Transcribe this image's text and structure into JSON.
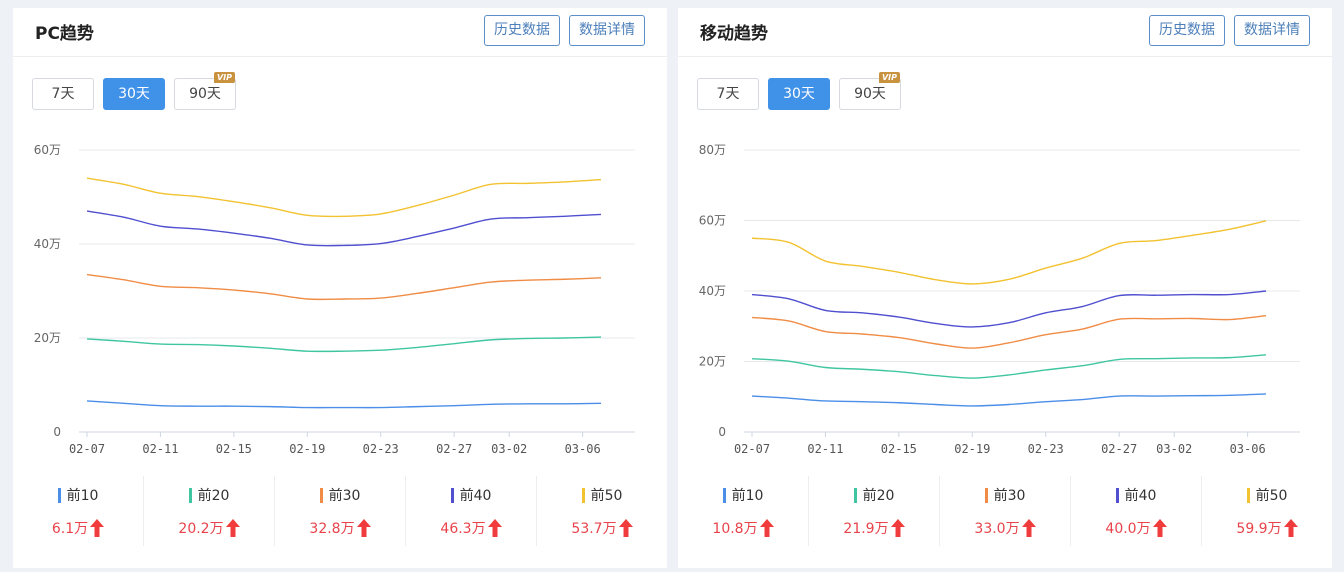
{
  "panels": [
    {
      "id": "pc",
      "title": "PC趋势",
      "buttons": {
        "history": "历史数据",
        "details": "数据详情"
      },
      "range_tabs": [
        {
          "label": "7天",
          "active": false,
          "vip": false
        },
        {
          "label": "30天",
          "active": true,
          "vip": false
        },
        {
          "label": "90天",
          "active": false,
          "vip": true
        }
      ],
      "vip_badge": "VIP",
      "legend": [
        {
          "label": "前10",
          "value": "6.1万",
          "color": "#4a8ee8",
          "trend": "up"
        },
        {
          "label": "前20",
          "value": "20.2万",
          "color": "#3fc6a0",
          "trend": "up"
        },
        {
          "label": "前30",
          "value": "32.8万",
          "color": "#f08c45",
          "trend": "up"
        },
        {
          "label": "前40",
          "value": "46.3万",
          "color": "#4f4fd0",
          "trend": "up"
        },
        {
          "label": "前50",
          "value": "53.7万",
          "color": "#f2c230",
          "trend": "up"
        }
      ]
    },
    {
      "id": "mobile",
      "title": "移动趋势",
      "buttons": {
        "history": "历史数据",
        "details": "数据详情"
      },
      "range_tabs": [
        {
          "label": "7天",
          "active": false,
          "vip": false
        },
        {
          "label": "30天",
          "active": true,
          "vip": false
        },
        {
          "label": "90天",
          "active": false,
          "vip": true
        }
      ],
      "vip_badge": "VIP",
      "legend": [
        {
          "label": "前10",
          "value": "10.8万",
          "color": "#4a8ee8",
          "trend": "up"
        },
        {
          "label": "前20",
          "value": "21.9万",
          "color": "#3fc6a0",
          "trend": "up"
        },
        {
          "label": "前30",
          "value": "33.0万",
          "color": "#f08c45",
          "trend": "up"
        },
        {
          "label": "前40",
          "value": "40.0万",
          "color": "#4f4fd0",
          "trend": "up"
        },
        {
          "label": "前50",
          "value": "59.9万",
          "color": "#f2c230",
          "trend": "up"
        }
      ]
    }
  ],
  "chart_data": [
    {
      "type": "line",
      "title": "PC趋势",
      "xlabel": "",
      "ylabel": "",
      "ylim": [
        0,
        60
      ],
      "yticks": [
        "0",
        "20万",
        "40万",
        "60万"
      ],
      "xticks": [
        "02-07",
        "02-11",
        "02-15",
        "02-19",
        "02-23",
        "02-27",
        "03-02",
        "03-06"
      ],
      "x": [
        "02-07",
        "02-09",
        "02-11",
        "02-13",
        "02-15",
        "02-17",
        "02-19",
        "02-21",
        "02-23",
        "02-25",
        "02-27",
        "03-01",
        "03-03",
        "03-05",
        "03-07"
      ],
      "grid": true,
      "legend_position": "bottom",
      "series": [
        {
          "name": "前10",
          "color": "#4a8ee8",
          "values": [
            6.6,
            6.1,
            5.6,
            5.5,
            5.5,
            5.4,
            5.2,
            5.2,
            5.2,
            5.4,
            5.6,
            5.9,
            6.0,
            6.0,
            6.1
          ]
        },
        {
          "name": "前20",
          "color": "#3fc6a0",
          "values": [
            19.8,
            19.3,
            18.7,
            18.6,
            18.3,
            17.8,
            17.2,
            17.2,
            17.4,
            18.0,
            18.8,
            19.6,
            19.9,
            20.0,
            20.2
          ]
        },
        {
          "name": "前30",
          "color": "#f08c45",
          "values": [
            33.5,
            32.4,
            31.0,
            30.7,
            30.2,
            29.4,
            28.3,
            28.3,
            28.5,
            29.5,
            30.7,
            31.9,
            32.3,
            32.5,
            32.8
          ]
        },
        {
          "name": "前40",
          "color": "#4f4fd0",
          "values": [
            47.0,
            45.7,
            43.8,
            43.2,
            42.3,
            41.2,
            39.8,
            39.7,
            40.1,
            41.6,
            43.4,
            45.3,
            45.6,
            45.9,
            46.3
          ]
        },
        {
          "name": "前50",
          "color": "#f2c230",
          "values": [
            54.0,
            52.7,
            50.8,
            50.1,
            49.0,
            47.7,
            46.1,
            45.9,
            46.4,
            48.2,
            50.4,
            52.7,
            52.9,
            53.2,
            53.7
          ]
        }
      ]
    },
    {
      "type": "line",
      "title": "移动趋势",
      "xlabel": "",
      "ylabel": "",
      "ylim": [
        0,
        80
      ],
      "yticks": [
        "0",
        "20万",
        "40万",
        "60万",
        "80万"
      ],
      "xticks": [
        "02-07",
        "02-11",
        "02-15",
        "02-19",
        "02-23",
        "02-27",
        "03-02",
        "03-06"
      ],
      "x": [
        "02-07",
        "02-09",
        "02-11",
        "02-13",
        "02-15",
        "02-17",
        "02-19",
        "02-21",
        "02-23",
        "02-25",
        "02-27",
        "03-01",
        "03-03",
        "03-05",
        "03-07"
      ],
      "grid": true,
      "legend_position": "bottom",
      "series": [
        {
          "name": "前10",
          "color": "#4a8ee8",
          "values": [
            10.2,
            9.6,
            8.8,
            8.6,
            8.3,
            7.8,
            7.4,
            7.8,
            8.6,
            9.2,
            10.2,
            10.2,
            10.3,
            10.4,
            10.8
          ]
        },
        {
          "name": "前20",
          "color": "#3fc6a0",
          "values": [
            20.8,
            20.1,
            18.3,
            17.8,
            17.1,
            16.0,
            15.3,
            16.2,
            17.6,
            18.8,
            20.6,
            20.8,
            21.0,
            21.1,
            21.9
          ]
        },
        {
          "name": "前30",
          "color": "#f08c45",
          "values": [
            32.5,
            31.5,
            28.5,
            27.8,
            26.8,
            25.0,
            23.8,
            25.3,
            27.6,
            29.2,
            32.0,
            32.1,
            32.2,
            31.9,
            33.0
          ]
        },
        {
          "name": "前40",
          "color": "#4f4fd0",
          "values": [
            39.0,
            37.8,
            34.5,
            33.8,
            32.6,
            30.8,
            29.8,
            31.0,
            33.8,
            35.6,
            38.7,
            38.8,
            39.0,
            39.0,
            40.0
          ]
        },
        {
          "name": "前50",
          "color": "#f2c230",
          "values": [
            55.0,
            53.8,
            48.5,
            47.0,
            45.3,
            43.2,
            42.0,
            43.3,
            46.5,
            49.3,
            53.5,
            54.3,
            55.8,
            57.5,
            59.9
          ]
        }
      ]
    }
  ]
}
